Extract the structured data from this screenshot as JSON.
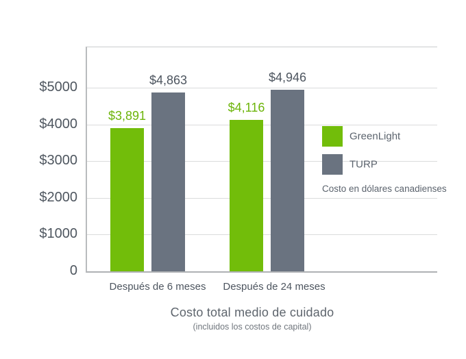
{
  "chart_data": {
    "type": "bar",
    "title": "Costo total medio de cuidado",
    "subtitle": "(incluidos los costos de capital)",
    "note": "Costo en dólares canadienses",
    "categories": [
      "Después de 6 meses",
      "Después de 24 meses"
    ],
    "series": [
      {
        "name": "GreenLight",
        "color": "#72bd0a",
        "label_color": "#6cb409",
        "values": [
          3891,
          4116
        ],
        "value_labels": [
          "$3,891",
          "$4,116"
        ]
      },
      {
        "name": "TURP",
        "color": "#6a7380",
        "label_color": "#4d555f",
        "values": [
          4863,
          4946
        ],
        "value_labels": [
          "$4,863",
          "$4,946"
        ]
      }
    ],
    "y_ticks": [
      0,
      1000,
      2000,
      3000,
      4000,
      5000
    ],
    "y_tick_labels": [
      "0",
      "$1000",
      "$2000",
      "$3000",
      "$4000",
      "$5000"
    ],
    "ylim": [
      0,
      6100
    ],
    "grid": true,
    "legend_position": "right-inside"
  },
  "colors": {
    "greenlight": "#72bd0a",
    "turp": "#6a7380",
    "gridline": "#dadbdc",
    "axis": "#aeb1b4",
    "tick_text": "#4e565f"
  }
}
